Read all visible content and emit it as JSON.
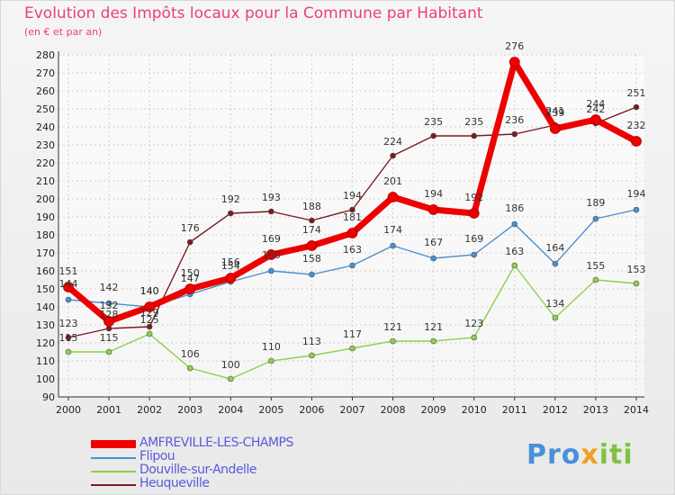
{
  "title": "Evolution des Impôts locaux pour la Commune par Habitant",
  "subtitle": "(en € et par an)",
  "logo": {
    "part1": "Pro",
    "part2": "x",
    "part3": "iti"
  },
  "chart_data": {
    "type": "line",
    "title": "Evolution des Impôts locaux pour la Commune par Habitant",
    "subtitle": "(en € et par an)",
    "xlabel": "",
    "ylabel": "",
    "ylim": [
      90,
      280
    ],
    "yticks": [
      90,
      100,
      110,
      120,
      130,
      140,
      150,
      160,
      170,
      180,
      190,
      200,
      210,
      220,
      230,
      240,
      250,
      260,
      270,
      280
    ],
    "x": [
      "2000",
      "2001",
      "2002",
      "2003",
      "2004",
      "2005",
      "2006",
      "2007",
      "2008",
      "2009",
      "2010",
      "2011",
      "2012",
      "2013",
      "2014"
    ],
    "grid": true,
    "legend_position": "bottom-left",
    "series": [
      {
        "name": "AMFREVILLE-LES-CHAMPS",
        "color": "#ee0000",
        "values": [
          151,
          132,
          140,
          150,
          156,
          169,
          174,
          181,
          201,
          194,
          192,
          276,
          239,
          244,
          232
        ]
      },
      {
        "name": "Flipou",
        "color": "#4a90d0",
        "values": [
          144,
          142,
          140,
          147,
          154,
          160,
          158,
          163,
          174,
          167,
          169,
          186,
          164,
          189,
          194
        ]
      },
      {
        "name": "Douville-sur-Andelle",
        "color": "#8ed04a",
        "values": [
          115,
          115,
          125,
          106,
          100,
          110,
          113,
          117,
          121,
          121,
          123,
          163,
          134,
          155,
          153
        ]
      },
      {
        "name": "Heuqueville",
        "color": "#7a1a20",
        "values": [
          123,
          128,
          129,
          176,
          192,
          193,
          188,
          194,
          224,
          235,
          235,
          236,
          241,
          242,
          251
        ]
      }
    ]
  }
}
